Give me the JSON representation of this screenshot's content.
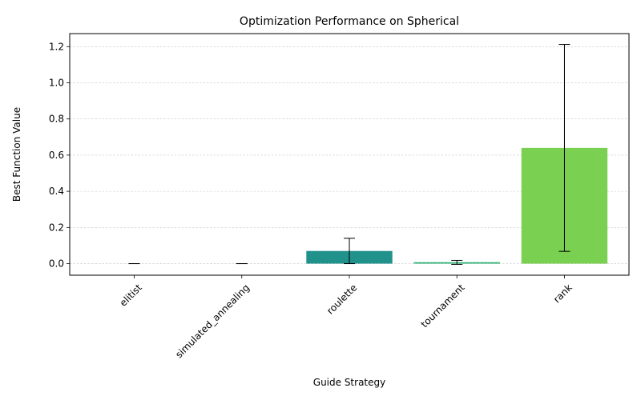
{
  "chart_data": {
    "type": "bar",
    "title": "Optimization Performance on Spherical",
    "xlabel": "Guide Strategy",
    "ylabel": "Best Function Value",
    "categories": [
      "elitist",
      "simulated_annealing",
      "roulette",
      "tournament",
      "rank"
    ],
    "values": [
      0.0,
      0.0,
      0.07,
      0.008,
      0.64
    ],
    "error_low": [
      0.0,
      0.0,
      0.0,
      -0.004,
      0.068
    ],
    "error_high": [
      0.0,
      0.0,
      0.14,
      0.018,
      1.212
    ],
    "colors": [
      "#440154",
      "#3b528b",
      "#21918c",
      "#35b779",
      "#7ad151"
    ],
    "ylim": [
      -0.064,
      1.272
    ],
    "yticks": [
      0.0,
      0.2,
      0.4,
      0.6,
      0.8,
      1.0,
      1.2
    ],
    "ytick_labels": [
      "0.0",
      "0.2",
      "0.4",
      "0.6",
      "0.8",
      "1.0",
      "1.2"
    ],
    "grid": "y-dashed",
    "error_bar_color": "#000000"
  }
}
